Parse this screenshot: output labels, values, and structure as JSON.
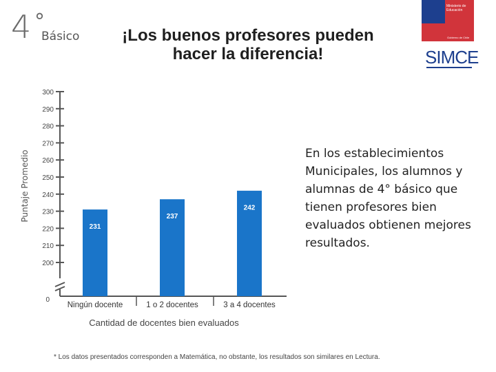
{
  "header": {
    "grade_number": "4",
    "grade_degree": "°",
    "grade_label": "Básico",
    "title_line1": "¡Los buenos profesores pueden",
    "title_line2": "hacer la diferencia!"
  },
  "logo": {
    "ministry_text": "Ministerio de Educación",
    "government_text": "Gobierno de Chile",
    "brand": "SIMCE"
  },
  "description": "En los establecimientos Municipales, los alumnos y alumnas de 4° básico que tienen profesores bien evaluados obtienen mejores resultados.",
  "footnote": "* Los datos presentados corresponden a Matemática, no obstante, los resultados son similares en Lectura.",
  "colors": {
    "bar": "#1a75c9",
    "axis": "#555555",
    "label": "#ffffff"
  },
  "chart_data": {
    "type": "bar",
    "categories": [
      "Ningún docente",
      "1 o 2 docentes",
      "3 a 4 docentes"
    ],
    "values": [
      231,
      237,
      242
    ],
    "data_labels": [
      "231",
      "237",
      "242"
    ],
    "xlabel": "Cantidad de docentes bien evaluados",
    "ylabel": "Puntaje Promedio",
    "y_ticks": [
      300,
      290,
      280,
      270,
      260,
      250,
      240,
      230,
      220,
      210,
      200
    ],
    "y_tick_labels": [
      "300",
      "290",
      "280",
      "270",
      "260",
      "250",
      "240",
      "230",
      "220",
      "210",
      "200"
    ],
    "y_break_label": "0",
    "ylim": [
      200,
      300
    ],
    "axis_break": true,
    "grid": false
  }
}
